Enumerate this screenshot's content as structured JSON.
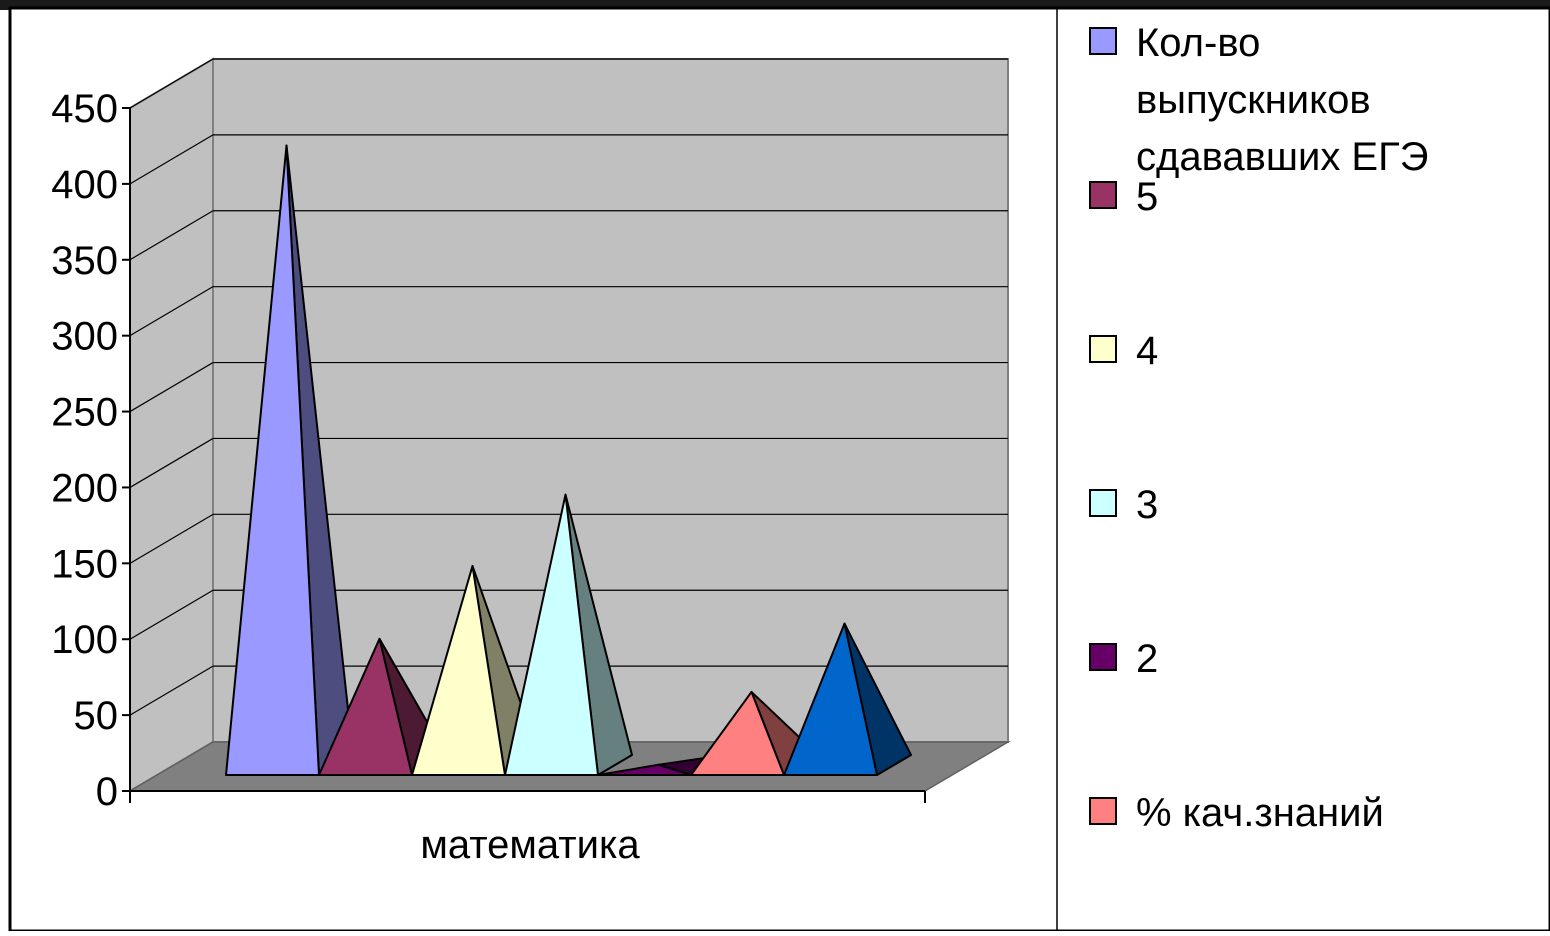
{
  "chart_data": {
    "type": "bar",
    "style": "3d-pyramid",
    "categories": [
      "математика"
    ],
    "ylim": [
      0,
      450
    ],
    "y_ticks": [
      "0",
      "50",
      "100",
      "150",
      "200",
      "250",
      "300",
      "350",
      "400",
      "450"
    ],
    "grid": true,
    "legend_position": "right",
    "series": [
      {
        "name": "Кол-во выпускников сдававших ЕГЭ",
        "legend_lines": [
          "Кол-во",
          "выпускников",
          "сдававших ЕГЭ"
        ],
        "values": [
          420
        ],
        "color": "#9999ff",
        "show_in_legend": true
      },
      {
        "name": "5",
        "legend_lines": [
          "5"
        ],
        "values": [
          95
        ],
        "color": "#993366",
        "show_in_legend": true
      },
      {
        "name": "4",
        "legend_lines": [
          "4"
        ],
        "values": [
          143
        ],
        "color": "#ffffcc",
        "show_in_legend": true
      },
      {
        "name": "3",
        "legend_lines": [
          "3"
        ],
        "values": [
          190
        ],
        "color": "#ccffff",
        "show_in_legend": true
      },
      {
        "name": "2",
        "legend_lines": [
          "2"
        ],
        "values": [
          12
        ],
        "color": "#660066",
        "show_in_legend": true
      },
      {
        "name": "% кач.знаний",
        "legend_lines": [
          "%  кач.знаний"
        ],
        "values": [
          60
        ],
        "color": "#ff8080",
        "show_in_legend": true
      },
      {
        "name": "",
        "legend_lines": [],
        "values": [
          105
        ],
        "color": "#0066cc",
        "show_in_legend": false
      }
    ]
  }
}
